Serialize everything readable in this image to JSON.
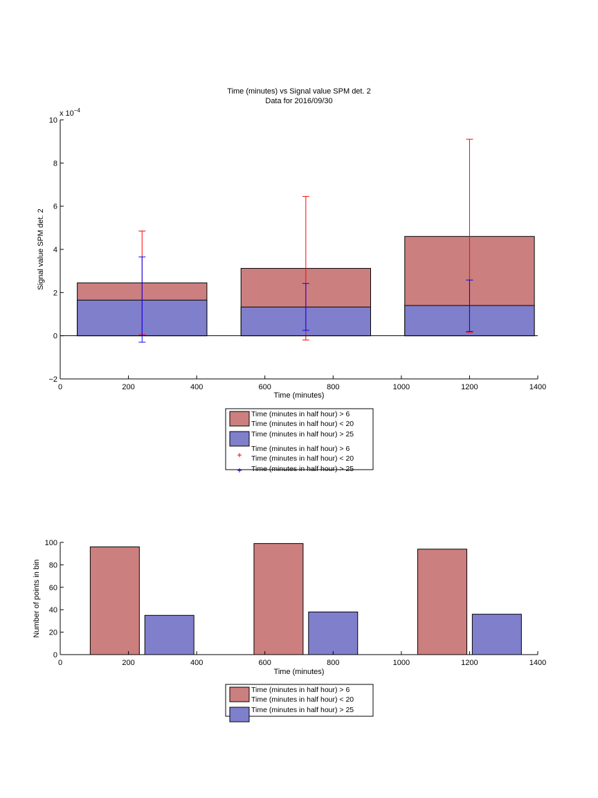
{
  "chart_data": [
    {
      "type": "bar",
      "title": "Time (minutes) vs Signal value SPM det. 2",
      "subtitle": "Data for 2016/09/30",
      "xlabel": "Time (minutes)",
      "ylabel": "Signal value SPM det. 2",
      "y_exponent_label": "x 10",
      "y_exponent": "−4",
      "xlim": [
        0,
        1400
      ],
      "ylim": [
        -2,
        10
      ],
      "xticks": [
        "0",
        "200",
        "400",
        "600",
        "800",
        "1000",
        "1200",
        "1400"
      ],
      "yticks": [
        "−2",
        "0",
        "2",
        "4",
        "6",
        "8",
        "10"
      ],
      "bar_style": "overlaid",
      "categories": [
        240,
        720,
        1200
      ],
      "series": [
        {
          "name": "Time (minutes in half hour) > 6\nTime (minutes in half hour) < 20",
          "color": "#cc7f7f",
          "values": [
            2.45,
            3.12,
            4.6
          ]
        },
        {
          "name": "Time (minutes in half hour) > 25",
          "color": "#7f7fcc",
          "values": [
            1.65,
            1.33,
            1.4
          ]
        }
      ],
      "errorbars": [
        {
          "name": "Time (minutes in half hour) > 6\nTime (minutes in half hour) < 20",
          "color": "#ff0000",
          "x": [
            240,
            720,
            1200
          ],
          "lower": [
            0.05,
            -0.2,
            0.15
          ],
          "upper": [
            4.85,
            6.45,
            9.1
          ]
        },
        {
          "name": "Time (minutes in half hour) > 25",
          "color": "#0000ff",
          "x": [
            240,
            720,
            1200
          ],
          "lower": [
            -0.3,
            0.25,
            0.2
          ],
          "upper": [
            3.65,
            2.42,
            2.58
          ]
        }
      ],
      "legend": {
        "placement": "below",
        "entries": [
          {
            "label": "Time (minutes in half hour) > 6",
            "label2": "Time (minutes in half hour) < 20",
            "swatch": "patch",
            "color": "#cc7f7f"
          },
          {
            "label": "Time (minutes in half hour) > 25",
            "swatch": "patch",
            "color": "#7f7fcc"
          },
          {
            "label": "Time (minutes in half hour) > 6",
            "label2": "Time (minutes in half hour) < 20",
            "swatch": "marker",
            "color": "#ff0000"
          },
          {
            "label": "Time (minutes in half hour) > 25",
            "swatch": "marker",
            "color": "#0000ff"
          }
        ]
      }
    },
    {
      "type": "bar",
      "xlabel": "Time (minutes)",
      "ylabel": "Number of points in bin",
      "xlim": [
        0,
        1400
      ],
      "ylim": [
        0,
        100
      ],
      "xticks": [
        "0",
        "200",
        "400",
        "600",
        "800",
        "1000",
        "1200",
        "1400"
      ],
      "yticks": [
        "0",
        "20",
        "40",
        "60",
        "80",
        "100"
      ],
      "bar_style": "grouped",
      "categories": [
        240,
        720,
        1200
      ],
      "series": [
        {
          "name": "Time (minutes in half hour) > 6\nTime (minutes in half hour) < 20",
          "color": "#cc7f7f",
          "values": [
            96,
            99,
            94
          ]
        },
        {
          "name": "Time (minutes in half hour) > 25",
          "color": "#7f7fcc",
          "values": [
            35,
            38,
            36
          ]
        }
      ],
      "legend": {
        "placement": "below",
        "entries": [
          {
            "label": "Time (minutes in half hour) > 6",
            "label2": "Time (minutes in half hour) < 20",
            "swatch": "patch",
            "color": "#cc7f7f"
          },
          {
            "label": "Time (minutes in half hour) > 25",
            "swatch": "patch",
            "color": "#7f7fcc"
          }
        ]
      }
    }
  ]
}
